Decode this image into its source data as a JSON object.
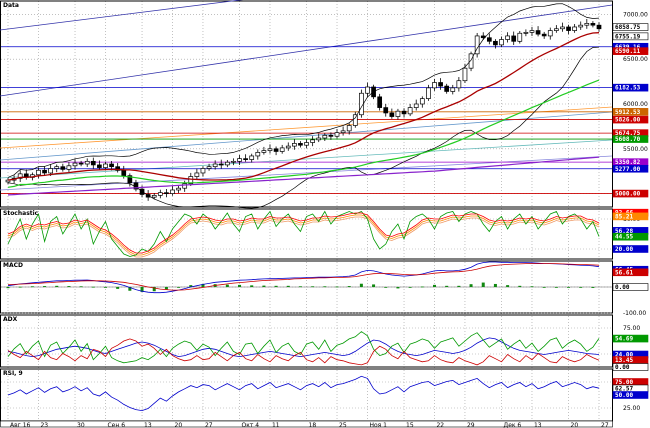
{
  "chart_data": [
    {
      "panel": "price",
      "type": "candlestick",
      "title": "Data",
      "ylim": [
        4850,
        7150
      ],
      "y_ticks": [
        7000,
        6500,
        6000,
        5500,
        5000
      ],
      "x_ticks": [
        "Авг 16",
        "23",
        "30",
        "Сен 6",
        "13",
        "20",
        "27",
        "Окт 4",
        "11",
        "18",
        "25",
        "Ноя 1",
        "15",
        "22",
        "29",
        "Дек 6",
        "13",
        "20",
        "27"
      ],
      "value_tags": [
        {
          "label": "6858.75",
          "value": 6858.75,
          "color": "#000000"
        },
        {
          "label": "6755.19",
          "value": 6755.19,
          "color": "#000000"
        },
        {
          "label": "6639.16",
          "value": 6639.16,
          "color": "#0000cc"
        },
        {
          "label": "6590.11",
          "value": 6590.11,
          "color": "#cc0000"
        },
        {
          "label": "6182.53",
          "value": 6182.53,
          "color": "#0000cc"
        },
        {
          "label": "5912.53",
          "value": 5912.53,
          "color": "#cc6600"
        },
        {
          "label": "5826.00",
          "value": 5826.0,
          "color": "#cc0000"
        },
        {
          "label": "5674.75",
          "value": 5674.75,
          "color": "#cc0000"
        },
        {
          "label": "5608.70",
          "value": 5608.7,
          "color": "#009900"
        },
        {
          "label": "5350.82",
          "value": 5350.82,
          "color": "#9900cc"
        },
        {
          "label": "5277.00",
          "value": 5277.0,
          "color": "#0000cc"
        },
        {
          "label": "5000.00",
          "value": 5000.0,
          "color": "#cc0000"
        }
      ],
      "close": [
        5150,
        5170,
        5220,
        5180,
        5210,
        5260,
        5230,
        5280,
        5300,
        5270,
        5310,
        5340,
        5330,
        5360,
        5320,
        5290,
        5330,
        5300,
        5260,
        5200,
        5120,
        5050,
        4990,
        4960,
        4980,
        5010,
        5000,
        5040,
        5060,
        5110,
        5190,
        5230,
        5280,
        5300,
        5330,
        5320,
        5350,
        5360,
        5390,
        5380,
        5420,
        5460,
        5480,
        5500,
        5470,
        5510,
        5530,
        5560,
        5540,
        5570,
        5600,
        5620,
        5650,
        5640,
        5680,
        5700,
        5760,
        5880,
        6120,
        6190,
        6080,
        5960,
        5900,
        5860,
        5920,
        5890,
        5960,
        6000,
        6060,
        6180,
        6240,
        6200,
        6140,
        6180,
        6260,
        6400,
        6560,
        6760,
        6740,
        6700,
        6660,
        6720,
        6760,
        6700,
        6790,
        6800,
        6820,
        6780,
        6760,
        6820,
        6840,
        6860,
        6820,
        6860,
        6880,
        6900,
        6880,
        6840
      ]
    },
    {
      "panel": "stochastic",
      "type": "line",
      "title": "Stochastic",
      "ylim": [
        0,
        100
      ],
      "y_ticks": [
        80,
        20
      ],
      "value_tags": [
        {
          "label": "92.66",
          "value": 92.66,
          "color": "#ff0000"
        },
        {
          "label": "85.21",
          "value": 85.21,
          "color": "#ff8800"
        },
        {
          "label": "56.28",
          "value": 56.28,
          "color": "#0000cc"
        },
        {
          "label": "44.55",
          "value": 44.55,
          "color": "#009900"
        },
        {
          "label": "20.00",
          "value": 20.0,
          "color": "#0000cc"
        }
      ],
      "series": [
        {
          "name": "%K",
          "color": "#009900",
          "values": [
            30,
            55,
            80,
            40,
            70,
            90,
            35,
            75,
            85,
            50,
            70,
            90,
            60,
            80,
            30,
            55,
            75,
            40,
            25,
            10,
            5,
            8,
            20,
            15,
            30,
            55,
            35,
            60,
            75,
            90,
            85,
            70,
            90,
            80,
            60,
            75,
            92,
            70,
            55,
            85,
            90,
            60,
            80,
            95,
            65,
            80,
            90,
            70,
            55,
            85,
            90,
            75,
            95,
            70,
            85,
            90,
            95,
            90,
            95,
            80,
            40,
            20,
            30,
            55,
            70,
            40,
            75,
            85,
            90,
            80,
            60,
            85,
            92,
            95,
            75,
            90,
            95,
            90,
            70,
            55,
            75,
            85,
            60,
            80,
            90,
            70,
            85,
            60,
            75,
            90,
            95,
            70,
            85,
            90,
            80,
            60,
            75,
            45
          ]
        },
        {
          "name": "%D",
          "color": "#ff0000",
          "values": [
            50,
            55,
            65,
            70,
            65,
            70,
            68,
            72,
            75,
            70,
            72,
            78,
            75,
            78,
            70,
            62,
            58,
            50,
            40,
            28,
            18,
            12,
            12,
            16,
            22,
            32,
            40,
            48,
            58,
            70,
            80,
            82,
            84,
            82,
            78,
            76,
            80,
            80,
            76,
            78,
            82,
            80,
            80,
            85,
            82,
            82,
            84,
            80,
            76,
            78,
            82,
            82,
            86,
            84,
            85,
            87,
            90,
            92,
            92,
            88,
            75,
            60,
            48,
            45,
            50,
            52,
            60,
            68,
            78,
            82,
            80,
            80,
            84,
            88,
            86,
            88,
            90,
            90,
            85,
            78,
            75,
            78,
            76,
            78,
            82,
            80,
            82,
            78,
            76,
            80,
            85,
            82,
            84,
            86,
            86,
            80,
            78,
            72
          ]
        }
      ]
    },
    {
      "panel": "macd",
      "type": "line",
      "title": "MACD",
      "ylim": [
        -100,
        100
      ],
      "y_ticks": [
        0,
        -100
      ],
      "value_tags": [
        {
          "label": "66.45",
          "value": 66.45,
          "color": "#0000cc"
        },
        {
          "label": "56.61",
          "value": 56.61,
          "color": "#cc0000"
        },
        {
          "label": "0.00",
          "value": 0.0,
          "color": "#000000"
        }
      ],
      "series": [
        {
          "name": "MACD",
          "color": "#0000cc",
          "values": [
            5,
            8,
            12,
            14,
            16,
            18,
            20,
            22,
            24,
            24,
            25,
            26,
            26,
            27,
            25,
            22,
            20,
            17,
            12,
            6,
            -2,
            -10,
            -16,
            -20,
            -22,
            -22,
            -20,
            -16,
            -12,
            -6,
            0,
            5,
            10,
            14,
            18,
            20,
            22,
            24,
            26,
            27,
            28,
            30,
            31,
            32,
            32,
            33,
            34,
            35,
            35,
            36,
            37,
            38,
            38,
            38,
            39,
            40,
            42,
            46,
            58,
            64,
            62,
            56,
            50,
            46,
            44,
            42,
            44,
            46,
            50,
            56,
            62,
            64,
            62,
            62,
            64,
            68,
            76,
            88,
            94,
            96,
            96,
            95,
            95,
            94,
            94,
            94,
            93,
            92,
            90,
            90,
            89,
            88,
            86,
            85,
            84,
            83,
            81,
            78
          ]
        },
        {
          "name": "Signal",
          "color": "#cc0000",
          "values": [
            10,
            10,
            11,
            12,
            13,
            14,
            16,
            17,
            19,
            20,
            21,
            22,
            23,
            24,
            24,
            24,
            23,
            22,
            20,
            18,
            14,
            10,
            5,
            0,
            -4,
            -8,
            -10,
            -12,
            -12,
            -11,
            -8,
            -5,
            -2,
            2,
            6,
            9,
            12,
            15,
            17,
            19,
            21,
            23,
            25,
            26,
            27,
            28,
            29,
            31,
            32,
            33,
            34,
            35,
            35,
            36,
            37,
            37,
            38,
            40,
            44,
            48,
            51,
            52,
            52,
            51,
            50,
            48,
            47,
            47,
            48,
            50,
            53,
            55,
            57,
            58,
            59,
            61,
            64,
            69,
            75,
            80,
            83,
            85,
            87,
            88,
            89,
            90,
            90,
            90,
            90,
            90,
            90,
            89,
            88,
            87,
            86,
            86,
            85,
            84
          ]
        }
      ]
    },
    {
      "panel": "adx",
      "type": "line",
      "title": "ADX",
      "ylim": [
        0,
        100
      ],
      "y_ticks": [
        75,
        25
      ],
      "value_tags": [
        {
          "label": "54.69",
          "value": 54.69,
          "color": "#009900"
        },
        {
          "label": "24.00",
          "value": 24.0,
          "color": "#0000cc"
        },
        {
          "label": "13.45",
          "value": 13.45,
          "color": "#cc0000"
        },
        {
          "label": "0.00",
          "value": 0.0,
          "color": "#000000"
        }
      ],
      "series": [
        {
          "name": "ADX",
          "color": "#0000cc",
          "values": [
            30,
            28,
            25,
            22,
            20,
            22,
            26,
            30,
            34,
            36,
            38,
            40,
            38,
            36,
            32,
            28,
            26,
            30,
            34,
            38,
            42,
            46,
            48,
            46,
            42,
            36,
            30,
            24,
            20,
            22,
            26,
            30,
            34,
            36,
            34,
            30,
            26,
            22,
            20,
            22,
            24,
            26,
            28,
            30,
            28,
            26,
            24,
            22,
            20,
            22,
            24,
            26,
            28,
            26,
            24,
            22,
            24,
            30,
            38,
            46,
            52,
            50,
            44,
            36,
            30,
            26,
            24,
            22,
            24,
            28,
            32,
            30,
            28,
            26,
            28,
            32,
            38,
            46,
            52,
            56,
            54,
            48,
            42,
            36,
            32,
            30,
            28,
            26,
            24,
            26,
            28,
            30,
            32,
            30,
            28,
            26,
            25,
            24
          ]
        },
        {
          "name": "+DI",
          "color": "#009900",
          "values": [
            20,
            35,
            45,
            25,
            40,
            50,
            20,
            42,
            48,
            26,
            38,
            52,
            30,
            45,
            14,
            26,
            40,
            18,
            12,
            8,
            10,
            12,
            18,
            14,
            22,
            34,
            20,
            36,
            44,
            50,
            46,
            32,
            44,
            38,
            22,
            36,
            48,
            30,
            24,
            44,
            46,
            26,
            40,
            52,
            28,
            40,
            46,
            30,
            24,
            44,
            48,
            34,
            52,
            30,
            42,
            46,
            54,
            58,
            68,
            60,
            34,
            22,
            26,
            40,
            46,
            28,
            44,
            48,
            54,
            50,
            36,
            48,
            52,
            56,
            40,
            50,
            60,
            66,
            52,
            38,
            46,
            54,
            34,
            44,
            52,
            36,
            46,
            30,
            40,
            52,
            56,
            36,
            46,
            52,
            44,
            30,
            38,
            55
          ]
        },
        {
          "name": "-DI",
          "color": "#cc0000",
          "values": [
            32,
            24,
            18,
            30,
            22,
            14,
            30,
            18,
            14,
            26,
            20,
            12,
            22,
            16,
            34,
            30,
            20,
            36,
            42,
            50,
            54,
            50,
            40,
            44,
            36,
            24,
            34,
            22,
            16,
            12,
            14,
            22,
            14,
            16,
            28,
            20,
            12,
            22,
            28,
            16,
            12,
            24,
            16,
            10,
            22,
            16,
            12,
            22,
            28,
            14,
            10,
            18,
            8,
            20,
            14,
            12,
            8,
            6,
            4,
            8,
            30,
            40,
            34,
            22,
            16,
            30,
            18,
            14,
            10,
            12,
            22,
            14,
            10,
            8,
            18,
            12,
            8,
            4,
            10,
            22,
            16,
            10,
            24,
            16,
            10,
            22,
            14,
            26,
            18,
            10,
            8,
            20,
            14,
            10,
            14,
            24,
            18,
            13
          ]
        }
      ]
    },
    {
      "panel": "rsi",
      "type": "line",
      "title": "RSI, 9",
      "ylim": [
        0,
        100
      ],
      "y_ticks": [
        75,
        25
      ],
      "value_tags": [
        {
          "label": "75.00",
          "value": 75.0,
          "color": "#cc0000"
        },
        {
          "label": "62.57",
          "value": 62.57,
          "color": "#000000"
        },
        {
          "label": "50.00",
          "value": 50.0,
          "color": "#0000cc"
        }
      ],
      "series": [
        {
          "name": "RSI",
          "color": "#0000cc",
          "values": [
            50,
            54,
            60,
            52,
            58,
            64,
            55,
            62,
            66,
            56,
            60,
            66,
            58,
            64,
            52,
            48,
            56,
            46,
            40,
            32,
            26,
            22,
            20,
            24,
            34,
            44,
            38,
            48,
            56,
            62,
            68,
            64,
            70,
            68,
            60,
            66,
            72,
            66,
            60,
            68,
            72,
            62,
            68,
            74,
            64,
            68,
            72,
            66,
            60,
            68,
            72,
            66,
            74,
            64,
            70,
            72,
            76,
            80,
            86,
            82,
            62,
            52,
            54,
            60,
            66,
            56,
            66,
            70,
            74,
            76,
            68,
            72,
            76,
            78,
            70,
            74,
            78,
            82,
            72,
            64,
            70,
            74,
            64,
            70,
            74,
            66,
            72,
            62,
            66,
            72,
            76,
            66,
            70,
            74,
            70,
            62,
            66,
            63
          ]
        }
      ]
    }
  ]
}
